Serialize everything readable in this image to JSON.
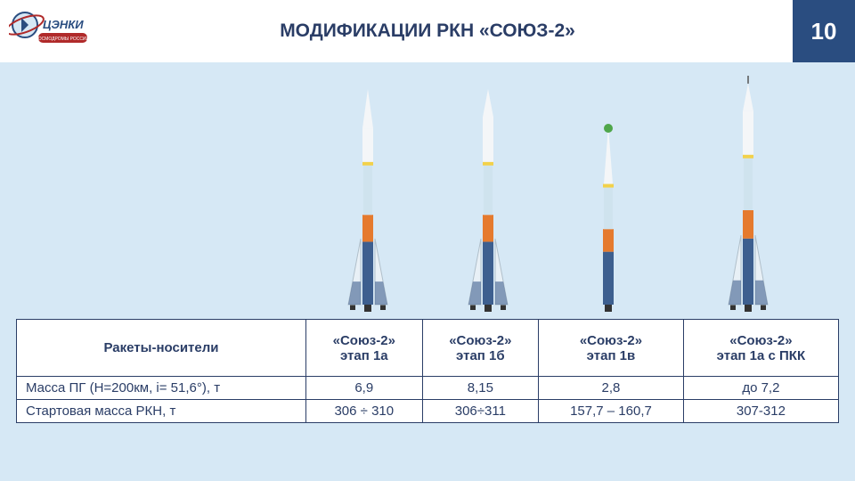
{
  "page": {
    "title": "МОДИФИКАЦИИ РКН «СОЮЗ-2»",
    "number": "10",
    "background_color": "#d6e8f5",
    "header_bg": "#ffffff",
    "pagebox_bg": "#2a4d80",
    "title_color": "#2a3d66",
    "logo_text": "ЦЭНКИ",
    "logo_subtext": "КОСМОДРОМЫ РОССИИ"
  },
  "rockets": {
    "items": [
      {
        "name": "soyuz-2-1a",
        "height_pct": 0.95,
        "has_boosters": true,
        "fairing": "std",
        "tip": "white"
      },
      {
        "name": "soyuz-2-1b",
        "height_pct": 0.95,
        "has_boosters": true,
        "fairing": "long",
        "tip": "white"
      },
      {
        "name": "soyuz-2-1v",
        "height_pct": 0.8,
        "has_boosters": false,
        "fairing": "cone",
        "tip": "green"
      },
      {
        "name": "soyuz-2-1a-pkk",
        "height_pct": 1.0,
        "has_boosters": true,
        "fairing": "pkk",
        "tip": "needle"
      }
    ],
    "colors": {
      "core_upper": "#cfe3ee",
      "core_mid": "#e57a2e",
      "core_lower": "#3d5f8f",
      "booster": "#e8f0f6",
      "booster_stripe": "#b0bfca",
      "nozzle": "#333333",
      "fairing": "#f4f6f8",
      "tip_green": "#4fa64a",
      "interstage": "#f2d14a"
    }
  },
  "table": {
    "header_label": "Ракеты-носители",
    "columns": [
      {
        "l1": "«Союз-2»",
        "l2": "этап 1а"
      },
      {
        "l1": "«Союз-2»",
        "l2": "этап 1б"
      },
      {
        "l1": "«Союз-2»",
        "l2": "этап 1в"
      },
      {
        "l1": "«Союз-2»",
        "l2": "этап 1а с ПКК"
      }
    ],
    "rows": [
      {
        "label": "Масса ПГ (Н=200км, i= 51,6°), т",
        "cells": [
          "6,9",
          "8,15",
          "2,8",
          "до 7,2"
        ]
      },
      {
        "label": "Стартовая масса РКН, т",
        "cells": [
          "306 ÷ 310",
          "306÷311",
          "157,7 – 160,7",
          "307-312"
        ]
      }
    ],
    "border_color": "#2a3d66",
    "text_color": "#2a3d66",
    "font_size_pt": 11
  }
}
